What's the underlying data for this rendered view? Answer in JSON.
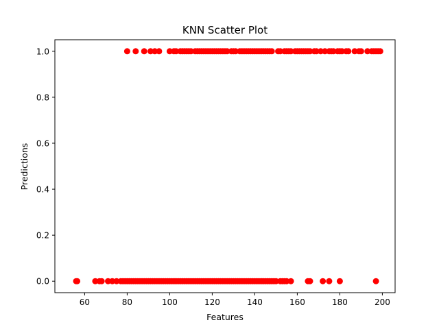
{
  "chart_data": {
    "type": "scatter",
    "title": "KNN Scatter Plot",
    "xlabel": "Features",
    "ylabel": "Predictions",
    "xlim": [
      46,
      206
    ],
    "ylim": [
      -0.05,
      1.05
    ],
    "x_ticks": [
      60,
      80,
      100,
      120,
      140,
      160,
      180,
      200
    ],
    "x_tick_labels": [
      "60",
      "80",
      "100",
      "120",
      "140",
      "160",
      "180",
      "200"
    ],
    "y_ticks": [
      0.0,
      0.2,
      0.4,
      0.6,
      0.8,
      1.0
    ],
    "y_tick_labels": [
      "0.0",
      "0.2",
      "0.4",
      "0.6",
      "0.8",
      "1.0"
    ],
    "grid": false,
    "marker_color": "#ff0000",
    "series": [
      {
        "x": [
          80,
          84,
          88,
          91,
          93,
          95,
          100,
          102,
          103,
          105,
          106,
          107,
          108,
          109,
          110,
          112,
          113,
          114,
          115,
          116,
          117,
          118,
          119,
          120,
          121,
          122,
          123,
          124,
          125,
          126,
          127,
          129,
          130,
          131,
          133,
          134,
          135,
          136,
          137,
          138,
          139,
          140,
          141,
          142,
          143,
          144,
          145,
          146,
          147,
          148,
          151,
          152,
          154,
          155,
          156,
          157,
          159,
          160,
          161,
          162,
          163,
          164,
          165,
          166,
          168,
          169,
          171,
          173,
          175,
          176,
          177,
          179,
          180,
          181,
          183,
          184,
          187,
          189,
          190,
          193,
          195,
          196,
          197,
          198,
          199
        ],
        "y": [
          1,
          1,
          1,
          1,
          1,
          1,
          1,
          1,
          1,
          1,
          1,
          1,
          1,
          1,
          1,
          1,
          1,
          1,
          1,
          1,
          1,
          1,
          1,
          1,
          1,
          1,
          1,
          1,
          1,
          1,
          1,
          1,
          1,
          1,
          1,
          1,
          1,
          1,
          1,
          1,
          1,
          1,
          1,
          1,
          1,
          1,
          1,
          1,
          1,
          1,
          1,
          1,
          1,
          1,
          1,
          1,
          1,
          1,
          1,
          1,
          1,
          1,
          1,
          1,
          1,
          1,
          1,
          1,
          1,
          1,
          1,
          1,
          1,
          1,
          1,
          1,
          1,
          1,
          1,
          1,
          1,
          1,
          1,
          1,
          1
        ]
      },
      {
        "x": [
          56,
          56.5,
          65,
          67,
          68,
          71,
          73,
          75,
          77,
          78,
          79,
          80,
          81,
          82,
          83,
          84,
          85,
          86,
          87,
          88,
          89,
          90,
          91,
          92,
          93,
          94,
          95,
          96,
          97,
          98,
          99,
          100,
          101,
          102,
          103,
          104,
          105,
          106,
          107,
          108,
          109,
          110,
          111,
          112,
          113,
          114,
          115,
          116,
          117,
          118,
          119,
          120,
          121,
          122,
          123,
          124,
          125,
          126,
          127,
          128,
          129,
          130,
          131,
          132,
          133,
          134,
          135,
          136,
          137,
          138,
          139,
          140,
          141,
          142,
          143,
          144,
          145,
          146,
          147,
          148,
          149,
          150,
          152,
          153,
          154,
          155,
          157,
          165,
          166,
          172,
          175,
          180,
          197
        ],
        "y": [
          0,
          0,
          0,
          0,
          0,
          0,
          0,
          0,
          0,
          0,
          0,
          0,
          0,
          0,
          0,
          0,
          0,
          0,
          0,
          0,
          0,
          0,
          0,
          0,
          0,
          0,
          0,
          0,
          0,
          0,
          0,
          0,
          0,
          0,
          0,
          0,
          0,
          0,
          0,
          0,
          0,
          0,
          0,
          0,
          0,
          0,
          0,
          0,
          0,
          0,
          0,
          0,
          0,
          0,
          0,
          0,
          0,
          0,
          0,
          0,
          0,
          0,
          0,
          0,
          0,
          0,
          0,
          0,
          0,
          0,
          0,
          0,
          0,
          0,
          0,
          0,
          0,
          0,
          0,
          0,
          0,
          0,
          0,
          0,
          0,
          0,
          0,
          0,
          0,
          0,
          0,
          0,
          0
        ]
      }
    ]
  }
}
